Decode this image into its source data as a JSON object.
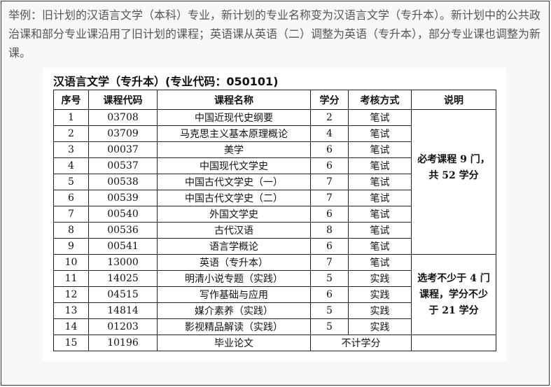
{
  "intro": "举例：旧计划的汉语言文学（本科）专业，新计划的专业名称变为汉语言文学（专升本）。新计划中的公共政治课和部分专业课沿用了旧计划的课程；英语课从英语（二）调整为英语（专升本），部分专业课也调整为新课。",
  "title": "汉语言文学（专升本）(专业代码：050101)",
  "headers": [
    "序号",
    "课程代码",
    "课程名称",
    "学分",
    "考核方式",
    "说明"
  ],
  "rows": [
    [
      "1",
      "03708",
      "中国近现代史纲要",
      "2",
      "笔试"
    ],
    [
      "2",
      "03709",
      "马克思主义基本原理概论",
      "4",
      "笔试"
    ],
    [
      "3",
      "00037",
      "美学",
      "6",
      "笔试"
    ],
    [
      "4",
      "00537",
      "中国现代文学史",
      "6",
      "笔试"
    ],
    [
      "5",
      "00538",
      "中国古代文学史（一）",
      "7",
      "笔试"
    ],
    [
      "6",
      "00539",
      "中国古代文学史（二）",
      "7",
      "笔试"
    ],
    [
      "7",
      "00540",
      "外国文学史",
      "6",
      "笔试"
    ],
    [
      "8",
      "00536",
      "古代汉语",
      "8",
      "笔试"
    ],
    [
      "9",
      "00541",
      "语言学概论",
      "6",
      "笔试"
    ],
    [
      "10",
      "13000",
      "英语（专升本）",
      "7",
      "笔试"
    ],
    [
      "11",
      "14025",
      "明清小说专题（实践）",
      "5",
      "实践"
    ],
    [
      "12",
      "04515",
      "写作基础与应用",
      "6",
      "实践"
    ],
    [
      "13",
      "14814",
      "媒介素养（实践）",
      "5",
      "实践"
    ],
    [
      "14",
      "01203",
      "影视精品解读（实践）",
      "5",
      "实践"
    ],
    [
      "15",
      "10196",
      "毕业论文",
      "不计学分"
    ]
  ],
  "notes": [
    "必考课程 9 门，共 52 学分",
    "选考不少于 4 门课程，学分不少于 21 学分"
  ]
}
